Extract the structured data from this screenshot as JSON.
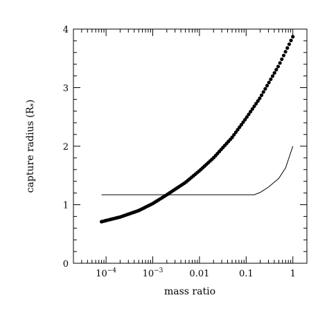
{
  "chart_data": {
    "type": "scatter",
    "title": "",
    "xlabel": "mass ratio",
    "ylabel": "capture radius (R",
    "ylabel_subscript": "*",
    "ylabel_close": ")",
    "xscale": "log",
    "xlim": [
      2e-05,
      2.0
    ],
    "ylim": [
      0,
      4
    ],
    "x_ticks": [
      {
        "value": 0.0001,
        "base": "10",
        "exp": "−4"
      },
      {
        "value": 0.001,
        "base": "10",
        "exp": "−3"
      },
      {
        "value": 0.01,
        "label": "0.01"
      },
      {
        "value": 0.1,
        "label": "0.1"
      },
      {
        "value": 1,
        "label": "1"
      }
    ],
    "y_ticks": [
      {
        "value": 0,
        "label": "0"
      },
      {
        "value": 1,
        "label": "1"
      },
      {
        "value": 2,
        "label": "2"
      },
      {
        "value": 3,
        "label": "3"
      },
      {
        "value": 4,
        "label": "4"
      }
    ],
    "series": [
      {
        "style": "dots",
        "color": "#000000",
        "points": [
          [
            8e-05,
            0.71
          ],
          [
            0.0001,
            0.73
          ],
          [
            0.0002,
            0.79
          ],
          [
            0.0005,
            0.9
          ],
          [
            0.001,
            1.02
          ],
          [
            0.002,
            1.17
          ],
          [
            0.005,
            1.38
          ],
          [
            0.01,
            1.58
          ],
          [
            0.02,
            1.8
          ],
          [
            0.05,
            2.15
          ],
          [
            0.1,
            2.48
          ],
          [
            0.2,
            2.83
          ],
          [
            0.5,
            3.38
          ],
          [
            1.0,
            3.87
          ]
        ]
      },
      {
        "style": "line",
        "color": "#000000",
        "points": [
          [
            8e-05,
            1.17
          ],
          [
            0.15,
            1.17
          ],
          [
            0.2,
            1.21
          ],
          [
            0.3,
            1.3
          ],
          [
            0.5,
            1.45
          ],
          [
            0.7,
            1.63
          ],
          [
            1.0,
            2.0
          ]
        ]
      }
    ]
  }
}
